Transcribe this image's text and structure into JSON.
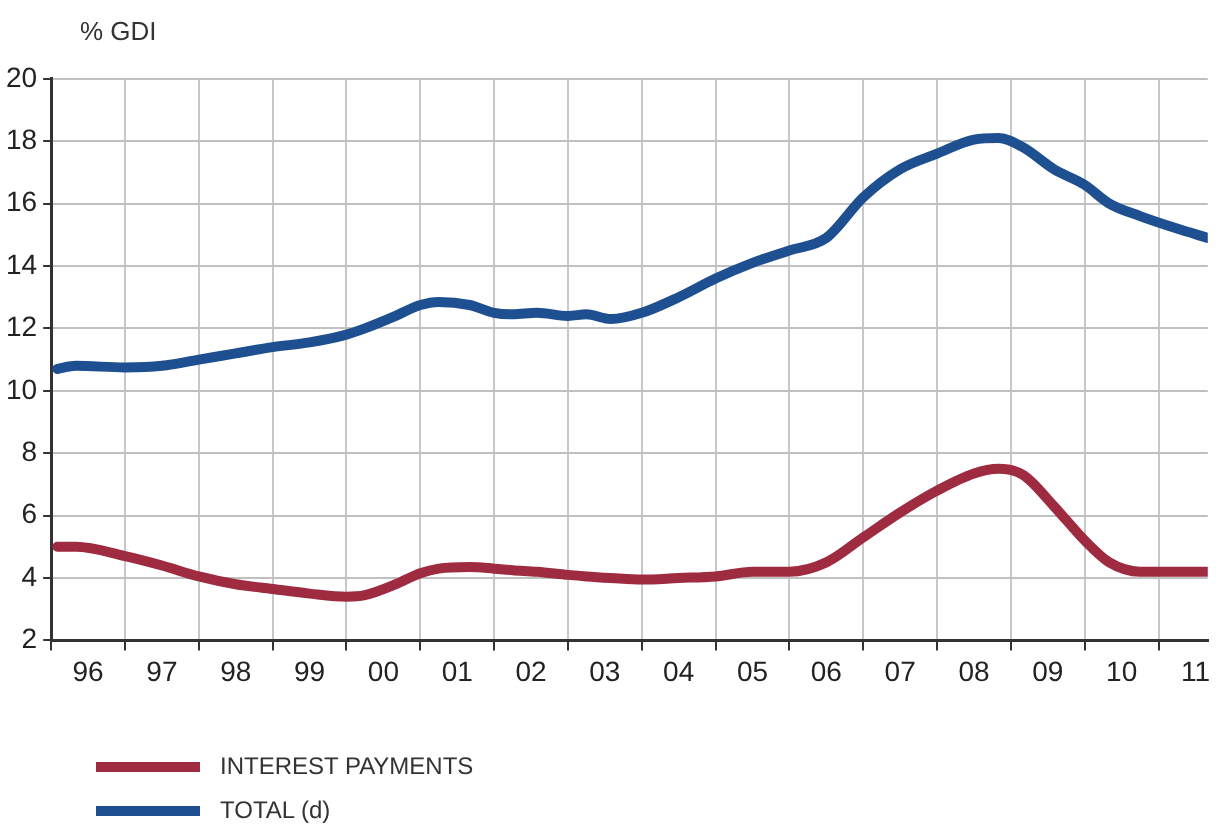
{
  "chart_data": {
    "type": "line",
    "ylabel": "% GDI",
    "xlim": [
      "1996-01",
      "2011-09"
    ],
    "xticks": [
      {
        "value": "1996-07",
        "label": "96"
      },
      {
        "value": "1997-07",
        "label": "97"
      },
      {
        "value": "1998-07",
        "label": "98"
      },
      {
        "value": "1999-07",
        "label": "99"
      },
      {
        "value": "2000-07",
        "label": "00"
      },
      {
        "value": "2001-07",
        "label": "01"
      },
      {
        "value": "2002-07",
        "label": "02"
      },
      {
        "value": "2003-07",
        "label": "03"
      },
      {
        "value": "2004-07",
        "label": "04"
      },
      {
        "value": "2005-07",
        "label": "05"
      },
      {
        "value": "2006-07",
        "label": "06"
      },
      {
        "value": "2007-07",
        "label": "07"
      },
      {
        "value": "2008-07",
        "label": "08"
      },
      {
        "value": "2009-07",
        "label": "09"
      },
      {
        "value": "2010-07",
        "label": "10"
      },
      {
        "value": "2011-07",
        "label": "11"
      }
    ],
    "ylim": [
      2,
      20
    ],
    "yticks": [
      2,
      4,
      6,
      8,
      10,
      12,
      14,
      16,
      18,
      20
    ],
    "grid": true,
    "legend": "bottom left",
    "marker": "none",
    "line_style": "solid",
    "x": [
      "1996-02",
      "1996-05",
      "1997-01",
      "1997-07",
      "1998-01",
      "1998-07",
      "1999-01",
      "1999-07",
      "2000-01",
      "2000-04",
      "2000-09",
      "2001-01",
      "2001-04",
      "2001-09",
      "2002-01",
      "2002-04",
      "2002-08",
      "2003-01",
      "2003-04",
      "2003-08",
      "2004-01",
      "2004-07",
      "2005-01",
      "2005-07",
      "2006-01",
      "2006-07",
      "2007-01",
      "2007-07",
      "2008-01",
      "2008-07",
      "2008-11",
      "2009-03",
      "2009-08",
      "2010-01",
      "2010-05",
      "2010-10",
      "2011-04",
      "2011-09"
    ],
    "series": [
      {
        "name": "INTEREST PAYMENTS",
        "color": "#9e2b40",
        "values": [
          5.0,
          5.0,
          4.7,
          4.4,
          4.05,
          3.8,
          3.65,
          3.5,
          3.4,
          3.45,
          3.8,
          4.15,
          4.3,
          4.35,
          4.3,
          4.25,
          4.2,
          4.1,
          4.05,
          4.0,
          3.95,
          4.0,
          4.05,
          4.2,
          4.2,
          4.5,
          5.3,
          6.1,
          6.8,
          7.35,
          7.5,
          7.3,
          6.3,
          5.2,
          4.5,
          4.2,
          4.2,
          4.2
        ]
      },
      {
        "name": "TOTAL (d)",
        "color": "#1d4f91",
        "values": [
          10.7,
          10.8,
          10.75,
          10.8,
          11.0,
          11.2,
          11.4,
          11.55,
          11.8,
          12.0,
          12.4,
          12.75,
          12.85,
          12.75,
          12.5,
          12.45,
          12.5,
          12.4,
          12.45,
          12.3,
          12.5,
          13.0,
          13.6,
          14.1,
          14.5,
          14.9,
          16.2,
          17.1,
          17.6,
          18.05,
          18.1,
          17.8,
          17.1,
          16.6,
          16.0,
          15.6,
          15.2,
          14.9
        ]
      }
    ]
  }
}
